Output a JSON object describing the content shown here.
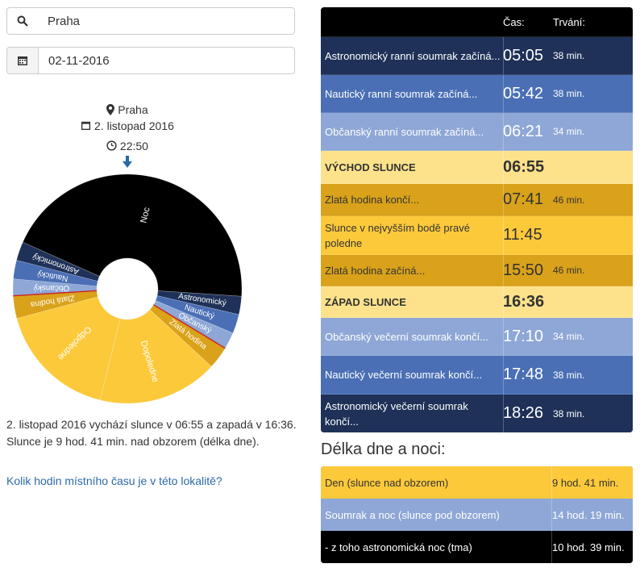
{
  "search": {
    "location_value": "Praha",
    "date_value": "02-11-2016"
  },
  "info": {
    "location": "Praha",
    "date": "2. listopad 2016",
    "time": "22:50"
  },
  "colors": {
    "night": "#000000",
    "astro": "#1f3158",
    "nautical": "#4a6fb5",
    "civil": "#8ea7d6",
    "golden": "#d9a21a",
    "day": "#fcc93b",
    "now_marker": "#cc2222"
  },
  "wheel_labels": {
    "noc": "Noc",
    "astro": "Astronomický",
    "nautical": "Nautický",
    "civil": "Občanský",
    "golden": "Zlatá hodina",
    "dopoledne": "Dopoledne",
    "odpoledne": "Odpoledne"
  },
  "description": {
    "line1": "2. listopad 2016 vychází slunce v 06:55 a zapadá v 16:36.",
    "line2": "Slunce je 9 hod. 41 min. nad obzorem (délka dne)."
  },
  "local_time_link": "Kolik hodin místního času je v této lokalitě?",
  "table": {
    "col_time": "Čas:",
    "col_duration": "Trvání:",
    "rows": [
      {
        "label": "Astronomický ranní soumrak začíná...",
        "time": "05:05",
        "duration": "38 min."
      },
      {
        "label": "Nautický ranní soumrak začíná...",
        "time": "05:42",
        "duration": "38 min."
      },
      {
        "label": "Občanský ranní soumrak začíná...",
        "time": "06:21",
        "duration": "34 min."
      },
      {
        "label": "VÝCHOD SLUNCE",
        "time": "06:55",
        "duration": ""
      },
      {
        "label": "Zlatá hodina končí...",
        "time": "07:41",
        "duration": "46 min."
      },
      {
        "label": "Slunce v nejvyšším bodě pravé poledne",
        "time": "11:45",
        "duration": ""
      },
      {
        "label": "Zlatá hodina začíná...",
        "time": "15:50",
        "duration": "46 min."
      },
      {
        "label": "ZÁPAD SLUNCE",
        "time": "16:36",
        "duration": ""
      },
      {
        "label": "Občanský večerní soumrak končí...",
        "time": "17:10",
        "duration": "34 min."
      },
      {
        "label": "Nautický večerní soumrak končí...",
        "time": "17:48",
        "duration": "38 min."
      },
      {
        "label": "Astronomický večerní soumrak končí...",
        "time": "18:26",
        "duration": "38 min."
      }
    ]
  },
  "daynight": {
    "title": "Délka dne a noci:",
    "rows": [
      {
        "label": "Den (slunce nad obzorem)",
        "value": "9 hod. 41 min."
      },
      {
        "label": "Soumrak a noc (slunce pod obzorem)",
        "value": "14 hod. 19 min."
      },
      {
        "label": "- z toho astronomická noc (tma)",
        "value": "10 hod. 39 min."
      }
    ]
  }
}
